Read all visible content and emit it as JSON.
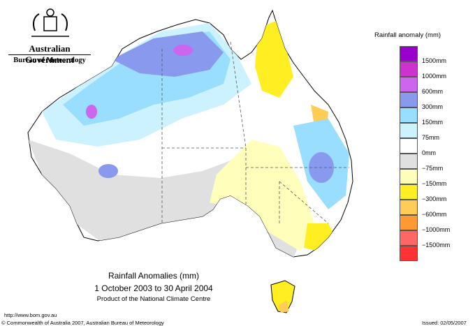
{
  "header": {
    "org_line1": "Australian Government",
    "org_line2": "Bureau of Meteorology",
    "coat_of_arms_icon": "coat-of-arms-icon"
  },
  "legend": {
    "title": "Rainfall anomaly (mm)",
    "items": [
      {
        "label": "1500mm",
        "color": "#9900cc"
      },
      {
        "label": "1000mm",
        "color": "#cc33cc"
      },
      {
        "label": "600mm",
        "color": "#cc66ee"
      },
      {
        "label": "300mm",
        "color": "#8899ee"
      },
      {
        "label": "150mm",
        "color": "#99ddff"
      },
      {
        "label": "75mm",
        "color": "#ccf2ff"
      },
      {
        "label": "0mm",
        "color": "#ffffff"
      },
      {
        "label": "−75mm",
        "color": "#e0e0e0"
      },
      {
        "label": "−150mm",
        "color": "#ffffbb"
      },
      {
        "label": "−300mm",
        "color": "#ffee22"
      },
      {
        "label": "−600mm",
        "color": "#ffcc55"
      },
      {
        "label": "−1000mm",
        "color": "#ff9933"
      },
      {
        "label": "−1500mm",
        "color": "#ff6666"
      },
      {
        "label": "",
        "color": "#ff3333"
      }
    ]
  },
  "map": {
    "title_line1": "Rainfall Anomalies (mm)",
    "title_line2": "1 October 2003 to 30 April 2004",
    "title_line3": "Product of the National Climate Centre"
  },
  "footer": {
    "url": "http://www.bom.gov.au",
    "copyright": "© Commonwealth of Australia 2007, Australian Bureau of Meteorology",
    "issued": "Issued: 02/05/2007"
  }
}
